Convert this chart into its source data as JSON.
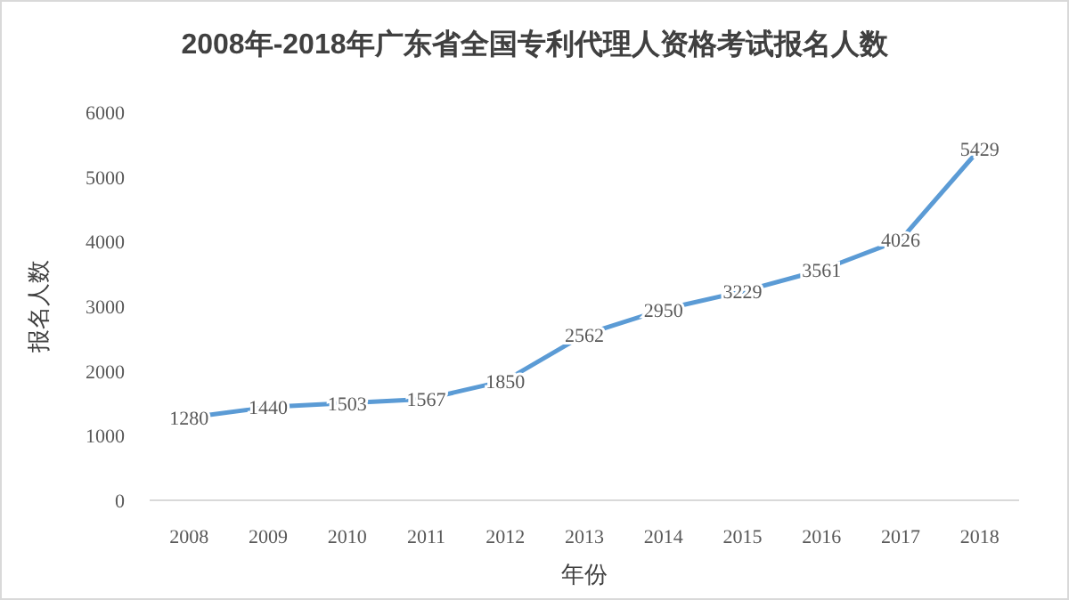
{
  "chart_data": {
    "type": "line",
    "title": "2008年-2018年广东省全国专利代理人资格考试报名人数",
    "xlabel": "年份",
    "ylabel": "报名人数",
    "categories": [
      "2008",
      "2009",
      "2010",
      "2011",
      "2012",
      "2013",
      "2014",
      "2015",
      "2016",
      "2017",
      "2018"
    ],
    "series": [
      {
        "color": "#5b9bd5",
        "values": [
          1280,
          1440,
          1503,
          1567,
          1850,
          2562,
          2950,
          3229,
          3561,
          4026,
          5429
        ]
      }
    ],
    "ylim": [
      0,
      6000
    ],
    "yticks": [
      0,
      1000,
      2000,
      3000,
      4000,
      5000,
      6000
    ],
    "data_labels": true
  }
}
